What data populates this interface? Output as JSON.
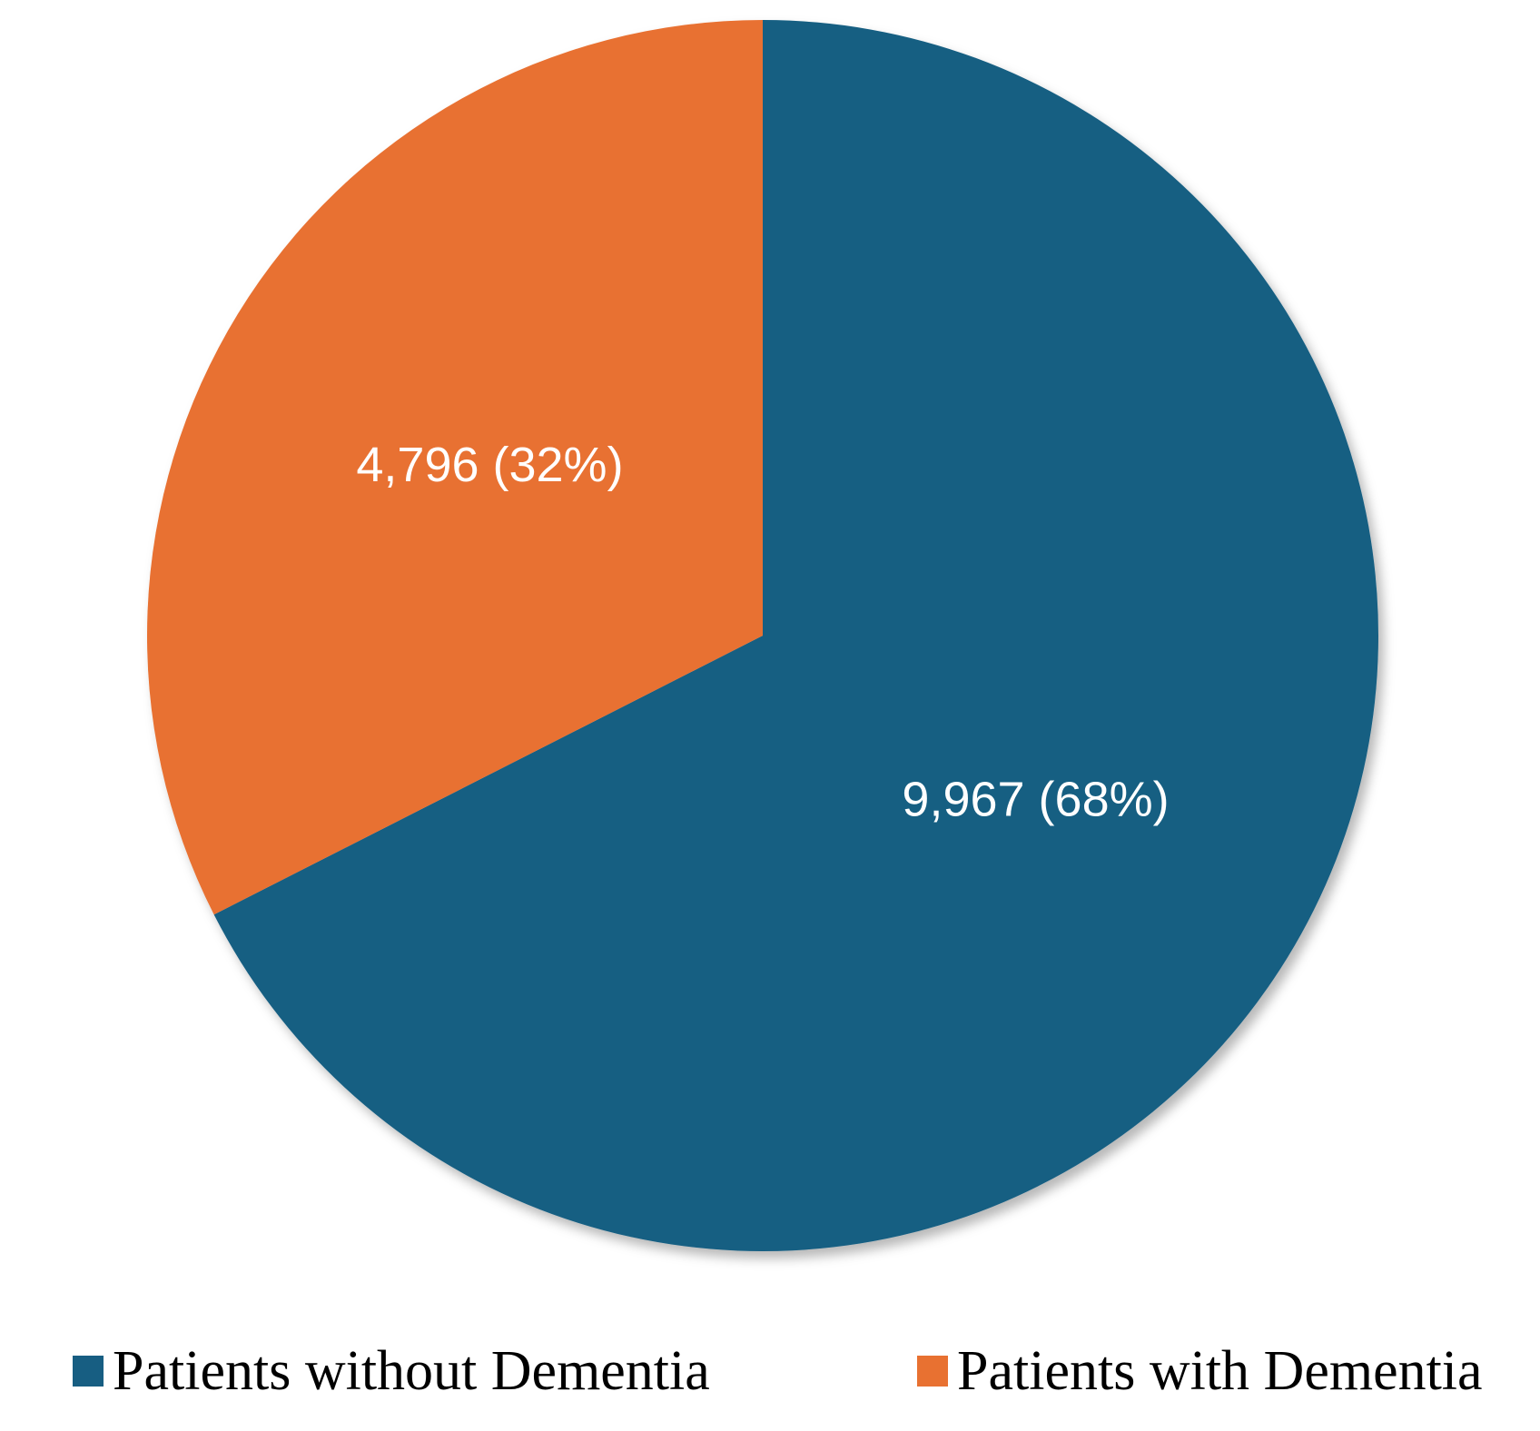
{
  "chart_data": {
    "type": "pie",
    "title": "",
    "slices": [
      {
        "name": "Patients without Dementia",
        "value": 9967,
        "percent": 68,
        "label": "9,967  (68%)",
        "color": "#175e82"
      },
      {
        "name": "Patients with Dementia",
        "value": 4796,
        "percent": 32,
        "label": "4,796 (32%)",
        "color": "#e87131"
      }
    ],
    "legend": {
      "position": "bottom",
      "items": [
        {
          "label": "Patients without Dementia",
          "color": "#175e82"
        },
        {
          "label": "Patients with Dementia",
          "color": "#e87131"
        }
      ]
    },
    "start_angle": "12 o'clock",
    "direction": "clockwise"
  }
}
